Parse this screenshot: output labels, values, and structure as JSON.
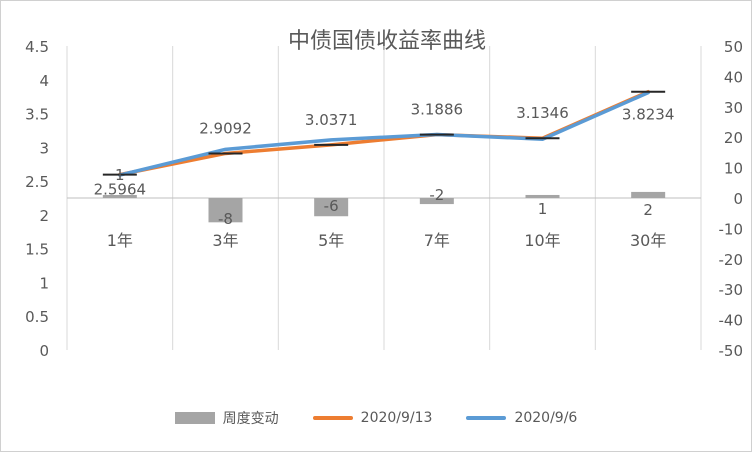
{
  "chart_data": {
    "type": "bar+line",
    "title": "中债国债收益率曲线",
    "categories": [
      "1年",
      "3年",
      "5年",
      "7年",
      "10年",
      "30年"
    ],
    "y_left": {
      "min": 0,
      "max": 4.5,
      "step": 0.5,
      "tick_labels": [
        "0",
        "0.5",
        "1",
        "1.5",
        "2",
        "2.5",
        "3",
        "3.5",
        "4",
        "4.5"
      ]
    },
    "y_right": {
      "min": -50,
      "max": 50,
      "step": 10,
      "tick_labels": [
        "-50",
        "-40",
        "-30",
        "-20",
        "-10",
        "0",
        "10",
        "20",
        "30",
        "40",
        "50"
      ]
    },
    "bar_series": {
      "name": "周度变动",
      "axis": "right",
      "values": [
        1,
        -8,
        -6,
        -2,
        1,
        2
      ],
      "labels": [
        "1",
        "-8",
        "-6",
        "-2",
        "1",
        "2"
      ],
      "color": "#a5a5a5"
    },
    "line_series": [
      {
        "name": "2020/9/13",
        "axis": "left",
        "values": [
          2.5964,
          2.9092,
          3.0371,
          3.1886,
          3.1346,
          3.8234
        ],
        "labels": [
          "2.5964",
          "2.9092",
          "3.0371",
          "3.1886",
          "3.1346",
          "3.8234"
        ],
        "color": "#ed7d31"
      },
      {
        "name": "2020/9/6",
        "axis": "left",
        "values": [
          2.59,
          2.97,
          3.11,
          3.19,
          3.12,
          3.81
        ],
        "color": "#5b9bd5"
      }
    ],
    "grid": true,
    "legend_position": "bottom"
  },
  "legend": {
    "bar_label": "周度变动",
    "line1_label": "2020/9/13",
    "line2_label": "2020/9/6"
  }
}
